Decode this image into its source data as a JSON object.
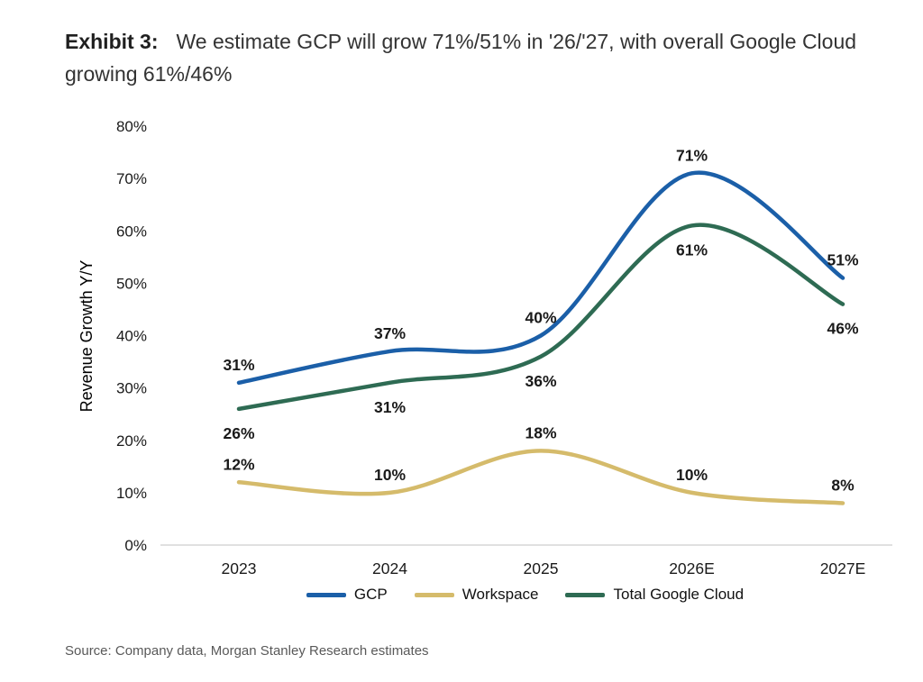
{
  "header": {
    "exhibit_label": "Exhibit 3:",
    "title": "We estimate GCP will grow 71%/51% in '26/'27, with overall Google Cloud growing 61%/46%"
  },
  "chart_data": {
    "type": "line",
    "categories": [
      "2023",
      "2024",
      "2025",
      "2026E",
      "2027E"
    ],
    "series": [
      {
        "name": "GCP",
        "color": "#1b5fa8",
        "values": [
          31,
          37,
          40,
          71,
          51
        ],
        "label_position": "above"
      },
      {
        "name": "Workspace",
        "color": "#d5bb6b",
        "values": [
          12,
          10,
          18,
          10,
          8
        ],
        "label_position": "above"
      },
      {
        "name": "Total Google Cloud",
        "color": "#2e6b53",
        "values": [
          26,
          31,
          36,
          61,
          46
        ],
        "label_position": "below"
      }
    ],
    "title": "",
    "xlabel": "",
    "ylabel": "Revenue Growth Y/Y",
    "ylim": [
      0,
      80
    ],
    "ytick_step": 10,
    "ytick_suffix": "%",
    "grid": false,
    "legend_position": "bottom",
    "data_label_format": "percent"
  },
  "source": "Source: Company data, Morgan Stanley Research estimates"
}
